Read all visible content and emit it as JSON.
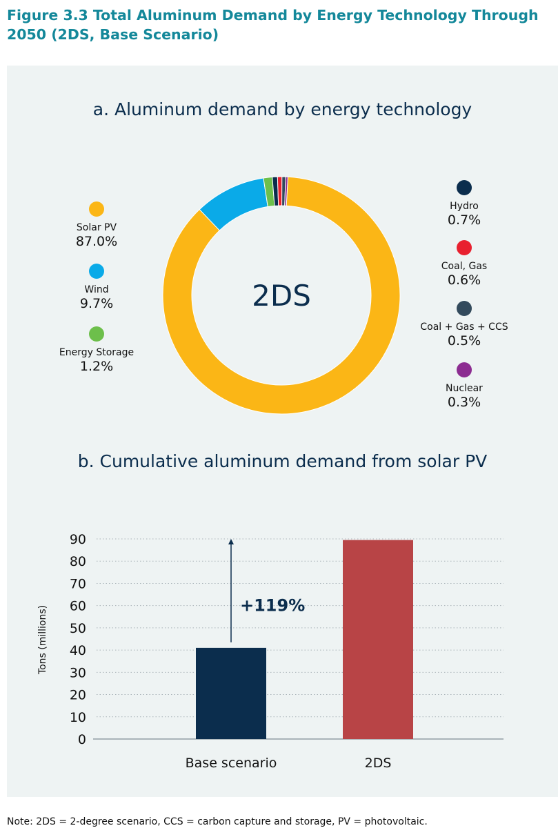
{
  "figure_title": "Figure 3.3 Total Aluminum Demand by Energy Technology Through 2050 (2DS, Base Scenario)",
  "note": "Note: 2DS = 2-degree scenario, CCS = carbon capture and storage, PV = photovoltaic.",
  "colors": {
    "title": "#14889a",
    "panel_bg": "#eef3f3",
    "text_dark": "#0b2d4d",
    "grid": "#a9b3b8"
  },
  "chart_data": [
    {
      "type": "pie",
      "variant": "donut",
      "title": "a. Aluminum demand by energy technology",
      "center_label": "2DS",
      "slices": [
        {
          "label": "Solar PV",
          "value": 87.0,
          "display": "87.0%",
          "color": "#fbb616",
          "icon": "yellow-dot"
        },
        {
          "label": "Wind",
          "value": 9.7,
          "display": "9.7%",
          "color": "#0aaae8",
          "icon": "blue-dot"
        },
        {
          "label": "Energy Storage",
          "value": 1.2,
          "display": "1.2%",
          "color": "#6dbf4b",
          "icon": "green-dot"
        },
        {
          "label": "Hydro",
          "value": 0.7,
          "display": "0.7%",
          "color": "#0b2d4d",
          "icon": "navy-dot"
        },
        {
          "label": "Coal, Gas",
          "value": 0.6,
          "display": "0.6%",
          "color": "#e8202f",
          "icon": "red-dot"
        },
        {
          "label": "Coal + Gas + CCS",
          "value": 0.5,
          "display": "0.5%",
          "color": "#334a5c",
          "icon": "slate-dot"
        },
        {
          "label": "Nuclear",
          "value": 0.3,
          "display": "0.3%",
          "color": "#8c2c91",
          "icon": "purple-dot"
        }
      ],
      "legend_left": [
        "Solar PV",
        "Wind",
        "Energy Storage"
      ],
      "legend_right": [
        "Hydro",
        "Coal, Gas",
        "Coal + Gas + CCS",
        "Nuclear"
      ]
    },
    {
      "type": "bar",
      "title": "b. Cumulative aluminum demand from solar PV",
      "categories": [
        "Base scenario",
        "2DS"
      ],
      "values": [
        41,
        89.5
      ],
      "colors": [
        "#0b2d4d",
        "#b84446"
      ],
      "ylabel": "Tons (millions)",
      "xlabel": "",
      "ylim": [
        0,
        90
      ],
      "yticks": [
        0,
        10,
        20,
        30,
        40,
        50,
        60,
        70,
        80,
        90
      ],
      "grid": true,
      "annotation": "+119%"
    }
  ]
}
